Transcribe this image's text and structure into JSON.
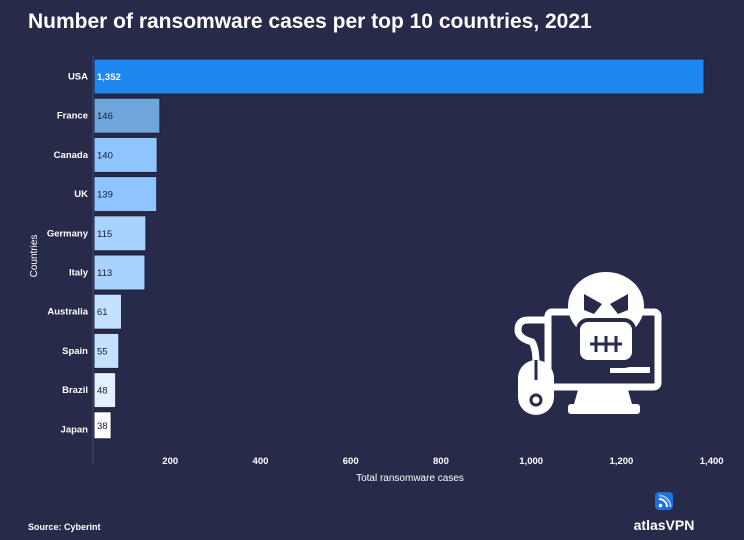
{
  "chart_data": {
    "type": "bar",
    "orientation": "horizontal",
    "title": "Number of ransomware cases per top 10 countries, 2021",
    "xlabel": "Total ransomware cases",
    "ylabel": "Countries",
    "xlim": [
      0,
      1400
    ],
    "xticks": [
      200,
      400,
      600,
      800,
      1000,
      1200,
      1400
    ],
    "xtick_labels": [
      "200",
      "400",
      "600",
      "800",
      "1,000",
      "1,200",
      "1,400"
    ],
    "categories": [
      "USA",
      "France",
      "Canada",
      "UK",
      "Germany",
      "Italy",
      "Australia",
      "Spain",
      "Brazil",
      "Japan"
    ],
    "values": [
      1352,
      146,
      140,
      139,
      115,
      113,
      61,
      55,
      48,
      38
    ],
    "value_labels": [
      "1,352",
      "146",
      "140",
      "139",
      "115",
      "113",
      "61",
      "55",
      "48",
      "38"
    ],
    "colors": [
      "#1e88f0",
      "#6ea6dc",
      "#8fc5ff",
      "#8fc5ff",
      "#a8d2ff",
      "#a8d2ff",
      "#c4e1ff",
      "#c4e1ff",
      "#e2f0ff",
      "#ffffff"
    ],
    "grid": false,
    "legend": "none"
  },
  "source": "Source: Cyberint",
  "brand": {
    "name": "atlasVPN",
    "color": "#1e6fe0"
  },
  "illustration": "skull-computer-icon",
  "background": "#282a4a"
}
